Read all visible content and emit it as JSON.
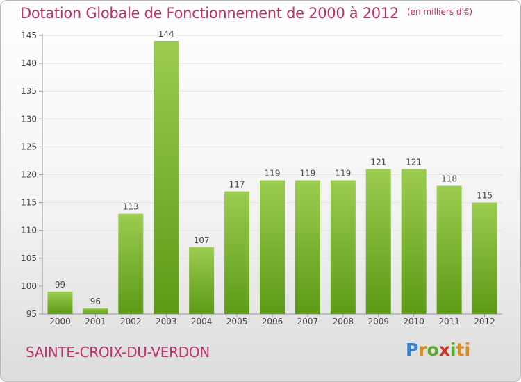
{
  "title": "Dotation Globale de Fonctionnement de 2000 à 2012",
  "subtitle": "(en milliers d'€)",
  "commune": "SAINTE-CROIX-DU-VERDON",
  "logo": {
    "text": "Proxiti",
    "letters": [
      "P",
      "r",
      "o",
      "x",
      "i",
      "ti"
    ]
  },
  "colors": {
    "accent": "#c0306a",
    "bar_light": "#9ccc50",
    "bar_dark": "#5c9a16"
  },
  "chart_data": {
    "type": "bar",
    "categories": [
      "2000",
      "2001",
      "2002",
      "2003",
      "2004",
      "2005",
      "2006",
      "2007",
      "2008",
      "2009",
      "2010",
      "2011",
      "2012"
    ],
    "values": [
      99,
      96,
      113,
      144,
      107,
      117,
      119,
      119,
      119,
      121,
      121,
      118,
      115
    ],
    "ylim": [
      95,
      145
    ],
    "yticks": [
      95,
      100,
      105,
      110,
      115,
      120,
      125,
      130,
      135,
      140,
      145
    ],
    "grid": "horizontal",
    "legend": "none"
  }
}
